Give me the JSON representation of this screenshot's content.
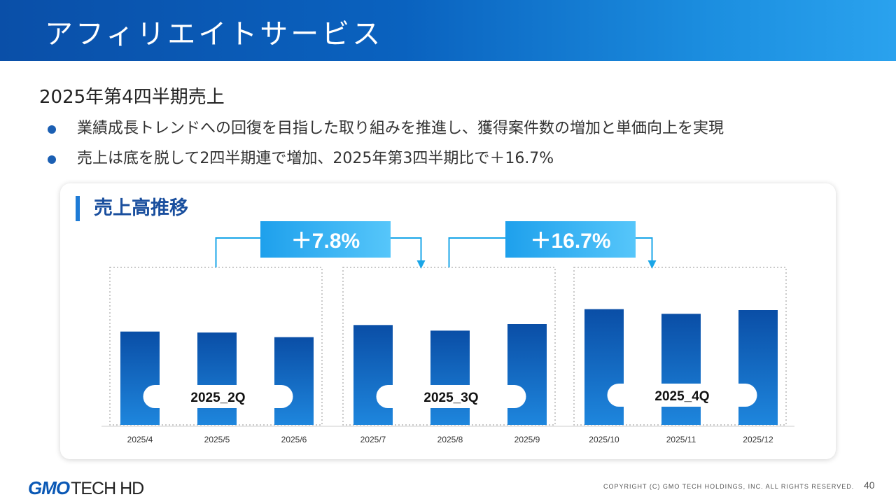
{
  "header": {
    "title": "アフィリエイトサービス"
  },
  "content": {
    "subheading": "2025年第4四半期売上",
    "bullets": [
      "業績成長トレンドへの回復を目指した取り組みを推進し、獲得案件数の増加と単価向上を実現",
      "売上は底を脱して2四半期連で増加、2025年第3四半期比で＋16.7%"
    ]
  },
  "panel": {
    "title": "売上高推移"
  },
  "chart_data": {
    "type": "bar",
    "title": "売上高推移",
    "categories": [
      "2025/4",
      "2025/5",
      "2025/6",
      "2025/7",
      "2025/8",
      "2025/9",
      "2025/10",
      "2025/11",
      "2025/12"
    ],
    "values": [
      100,
      99,
      94,
      107,
      101,
      108,
      124,
      119,
      123
    ],
    "ylim": [
      0,
      135
    ],
    "grid": false,
    "xlabel": "",
    "ylabel": "",
    "quarter_groups": [
      {
        "label": "2025_2Q",
        "months": [
          "2025/4",
          "2025/5",
          "2025/6"
        ]
      },
      {
        "label": "2025_3Q",
        "months": [
          "2025/7",
          "2025/8",
          "2025/9"
        ]
      },
      {
        "label": "2025_4Q",
        "months": [
          "2025/10",
          "2025/11",
          "2025/12"
        ]
      }
    ],
    "growth_annotations": [
      {
        "label": "＋7.8%",
        "from": "2025_2Q",
        "to": "2025_3Q"
      },
      {
        "label": "＋16.7%",
        "from": "2025_3Q",
        "to": "2025_4Q"
      }
    ],
    "note": "Bar values are relative, estimated from bar heights; no axis values are printed."
  },
  "colors": {
    "bar_top": "#0a4ea6",
    "bar_bottom": "#1e86dd",
    "growth_box_start": "#1ea0ec",
    "growth_box_end": "#56c6fa",
    "connector": "#1aa6e8",
    "header_start": "#0a4fa8",
    "header_end": "#2aa2ee"
  },
  "footer": {
    "logo_gmo": "GMO",
    "logo_tech": "TECH HD",
    "copyright": "COPYRIGHT (C)  GMO TECH HOLDINGS, INC. ALL RIGHTS RESERVED.",
    "page_number": "40"
  }
}
